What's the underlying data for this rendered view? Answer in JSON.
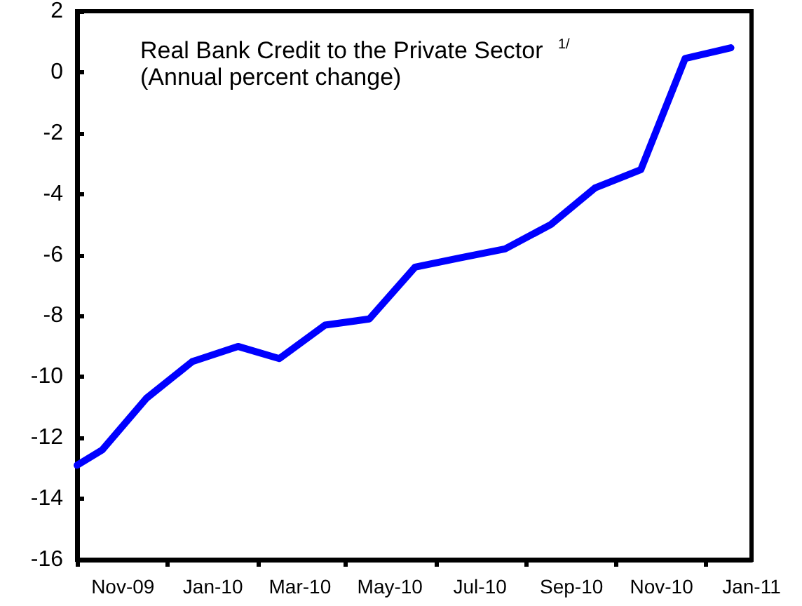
{
  "chart_data": {
    "type": "line",
    "title": "Real Bank Credit to the Private Sector $^{1/}$",
    "subtitle": "(Annual percent change)",
    "x": [
      "2009-10-15",
      "2009-11-01",
      "2009-12-01",
      "2010-01-01",
      "2010-02-01",
      "2010-03-01",
      "2010-04-01",
      "2010-05-01",
      "2010-06-01",
      "2010-07-01",
      "2010-08-01",
      "2010-09-01",
      "2010-10-01",
      "2010-11-01",
      "2010-12-01",
      "2011-01-01"
    ],
    "series": [
      {
        "color": "#0000ff",
        "values": [
          -12.9,
          -12.4,
          -10.7,
          -9.5,
          -9.0,
          -9.4,
          -8.3,
          -8.1,
          -6.4,
          -6.1,
          -5.8,
          -5.0,
          -3.8,
          -3.2,
          0.45,
          0.8
        ]
      }
    ],
    "xlim": [
      "2009-10-15",
      "2011-01-15"
    ],
    "xticks": [
      {
        "value": "2009-10-15",
        "label": null
      },
      {
        "value": "2009-11-15",
        "label": "Nov-09"
      },
      {
        "value": "2009-12-15",
        "label": null
      },
      {
        "value": "2010-01-15",
        "label": "Jan-10"
      },
      {
        "value": "2010-02-15",
        "label": null
      },
      {
        "value": "2010-03-15",
        "label": "Mar-10"
      },
      {
        "value": "2010-04-15",
        "label": null
      },
      {
        "value": "2010-05-15",
        "label": "May-10"
      },
      {
        "value": "2010-06-15",
        "label": null
      },
      {
        "value": "2010-07-15",
        "label": "Jul-10"
      },
      {
        "value": "2010-08-15",
        "label": null
      },
      {
        "value": "2010-09-15",
        "label": "Sep-10"
      },
      {
        "value": "2010-10-15",
        "label": null
      },
      {
        "value": "2010-11-15",
        "label": "Nov-10"
      },
      {
        "value": "2010-12-15",
        "label": null
      },
      {
        "value": "2011-01-15",
        "label": "Jan-11"
      }
    ],
    "ylim": [
      -16,
      2
    ],
    "yticks": [
      -16,
      -14,
      -12,
      -10,
      -8,
      -6,
      -4,
      -2,
      0,
      2
    ],
    "grid": false,
    "marker": "none",
    "line_style": "solid"
  }
}
